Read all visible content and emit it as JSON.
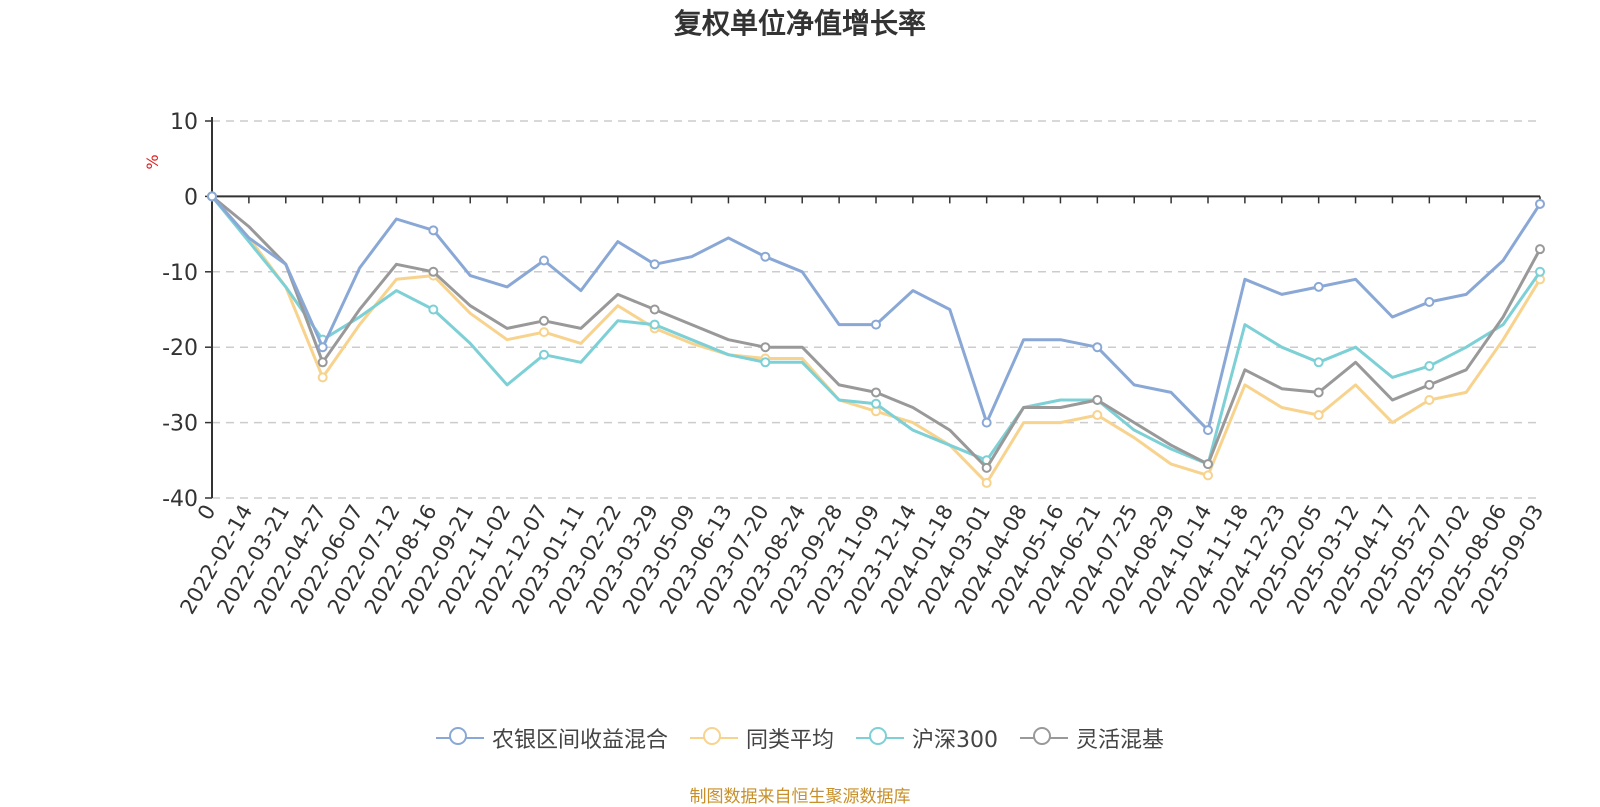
{
  "chart_data": {
    "type": "line",
    "title": "复权单位净值增长率",
    "ylabel": "%",
    "ylim": [
      -40,
      10
    ],
    "yticks": [
      10,
      0,
      -10,
      -20,
      -30,
      -40
    ],
    "grid": true,
    "legend_position": "bottom",
    "x_labels": [
      "0",
      "2022-02-14",
      "2022-03-21",
      "2022-04-27",
      "2022-06-07",
      "2022-07-12",
      "2022-08-16",
      "2022-09-21",
      "2022-11-02",
      "2022-12-07",
      "2023-01-11",
      "2023-02-22",
      "2023-03-29",
      "2023-05-09",
      "2023-06-13",
      "2023-07-20",
      "2023-08-24",
      "2023-09-28",
      "2023-11-09",
      "2023-12-14",
      "2024-01-18",
      "2024-03-01",
      "2024-04-08",
      "2024-05-16",
      "2024-06-21",
      "2024-07-25",
      "2024-08-29",
      "2024-10-14",
      "2024-11-18",
      "2024-12-23",
      "2025-02-05",
      "2025-03-12",
      "2025-04-17",
      "2025-05-27",
      "2025-07-02",
      "2025-08-06",
      "2025-09-03"
    ],
    "series": [
      {
        "name": "农银区间收益混合",
        "color": "#8aa8d6",
        "values": [
          0,
          -5.5,
          -9,
          -20,
          -9.5,
          -3,
          -4.5,
          -10.5,
          -12,
          -8.5,
          -12.5,
          -6,
          -9,
          -8,
          -5.5,
          -8,
          -10,
          -17,
          -17,
          -12.5,
          -15,
          -30,
          -19,
          -19,
          -20,
          -25,
          -26,
          -31,
          -11,
          -13,
          -12,
          -11,
          -16,
          -14,
          -13,
          -8.5,
          -1
        ]
      },
      {
        "name": "同类平均",
        "color": "#f7d38e",
        "values": [
          0,
          -5.5,
          -12,
          -24,
          -17,
          -11,
          -10.5,
          -15.5,
          -19,
          -18,
          -19.5,
          -14.5,
          -17.5,
          -19.5,
          -21,
          -21.5,
          -21.5,
          -27,
          -28.5,
          -30,
          -33,
          -38,
          -30,
          -30,
          -29,
          -32,
          -35.5,
          -37,
          -25,
          -28,
          -29,
          -25,
          -30,
          -27,
          -26,
          -19,
          -11
        ]
      },
      {
        "name": "沪深300",
        "color": "#7dd0d5",
        "values": [
          0,
          -6,
          -12,
          -19,
          -16,
          -12.5,
          -15,
          -19.5,
          -25,
          -21,
          -22,
          -16.5,
          -17,
          -19,
          -21,
          -22,
          -22,
          -27,
          -27.5,
          -31,
          -33,
          -35,
          -28,
          -27,
          -27,
          -31,
          -33.5,
          -35.5,
          -17,
          -20,
          -22,
          -20,
          -24,
          -22.5,
          -20,
          -17,
          -10
        ]
      },
      {
        "name": "灵活混基",
        "color": "#999999",
        "values": [
          0,
          -4,
          -9,
          -22,
          -15,
          -9,
          -10,
          -14.5,
          -17.5,
          -16.5,
          -17.5,
          -13,
          -15,
          -17,
          -19,
          -20,
          -20,
          -25,
          -26,
          -28,
          -31,
          -36,
          -28,
          -28,
          -27,
          -30,
          -33,
          -35.5,
          -23,
          -25.5,
          -26,
          -22,
          -27,
          -25,
          -23,
          -16,
          -7
        ]
      }
    ]
  },
  "legend": {
    "items": [
      {
        "label": "农银区间收益混合",
        "color": "#8aa8d6"
      },
      {
        "label": "同类平均",
        "color": "#f7d38e"
      },
      {
        "label": "沪深300",
        "color": "#7dd0d5"
      },
      {
        "label": "灵活混基",
        "color": "#999999"
      }
    ]
  },
  "footer": {
    "source": "制图数据来自恒生聚源数据库"
  }
}
